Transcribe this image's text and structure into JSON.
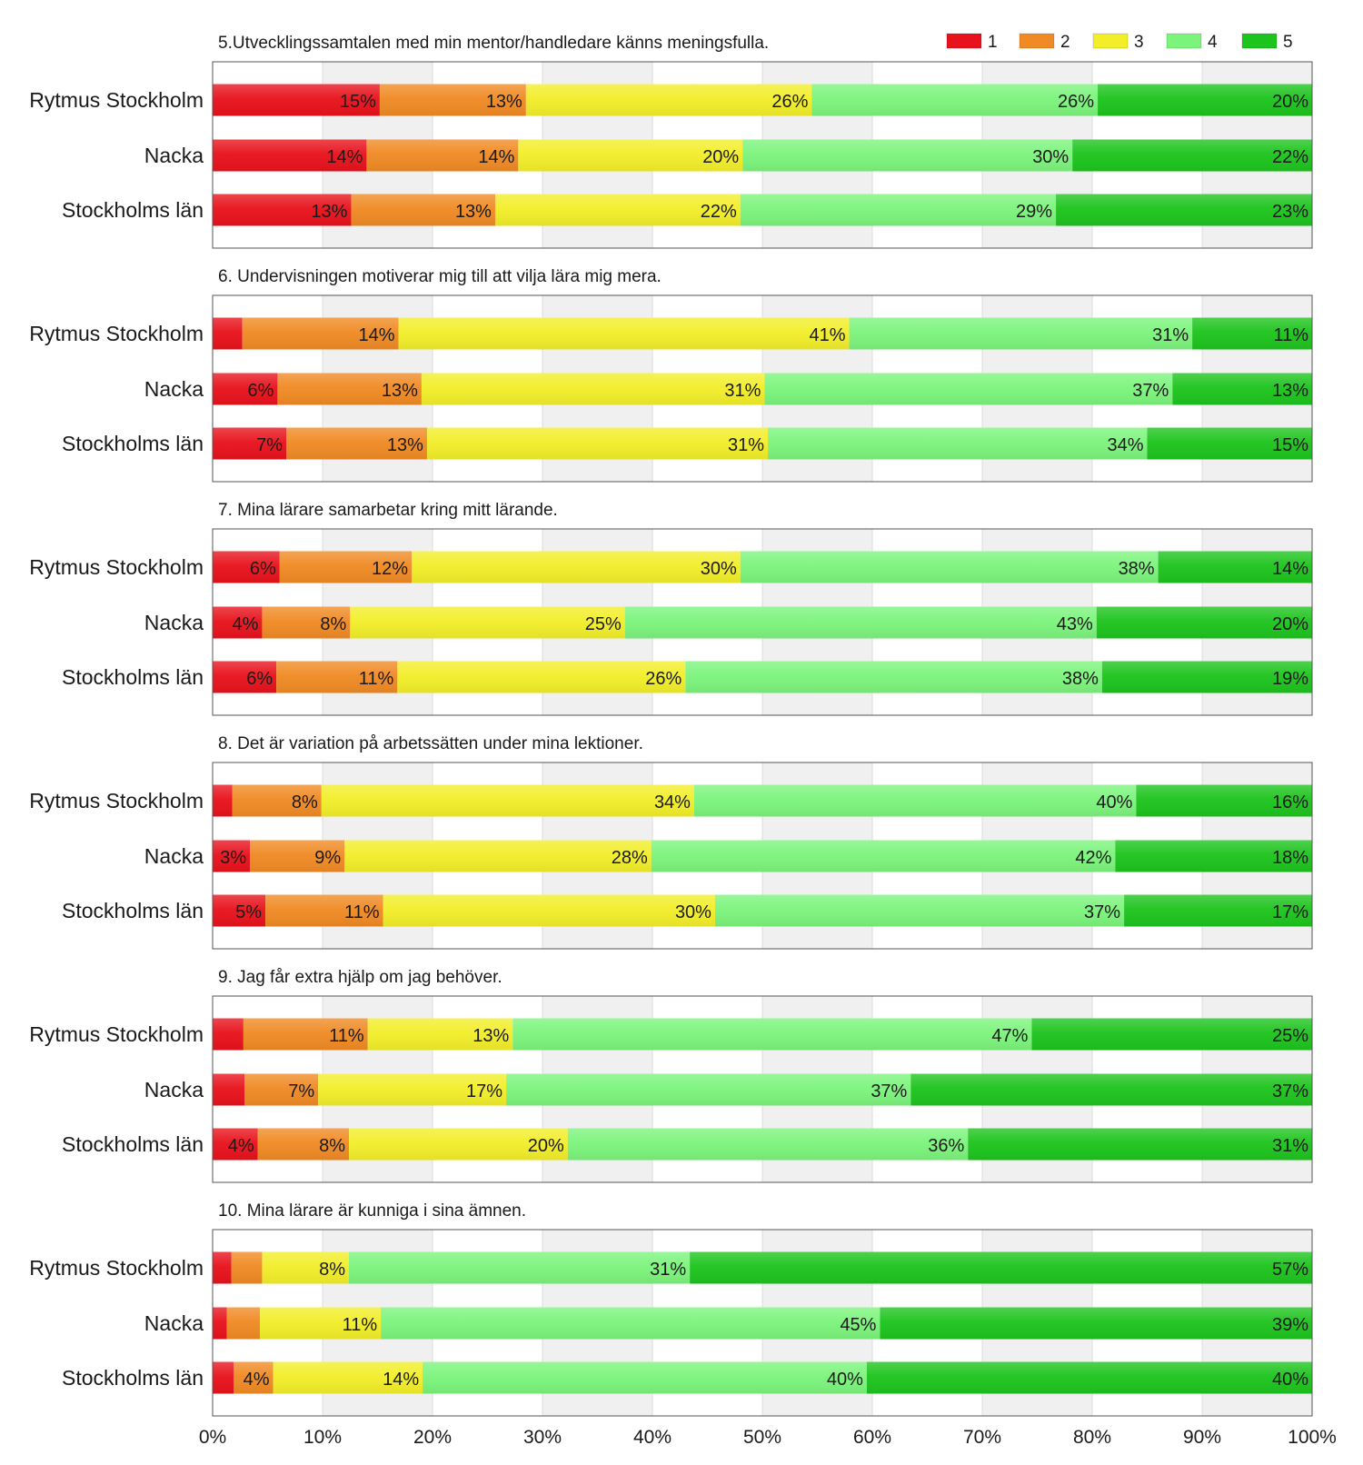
{
  "chart_data": {
    "type": "bar",
    "orientation": "horizontal",
    "stacked": "percent",
    "categories": [
      "Rytmus Stockholm",
      "Nacka",
      "Stockholms län"
    ],
    "legend": {
      "placement": "top-right",
      "entries": [
        "1",
        "2",
        "3",
        "4",
        "5"
      ]
    },
    "colors": [
      "#e8121c",
      "#f08a24",
      "#f2ee2a",
      "#7cf47c",
      "#1dc41d"
    ],
    "x_axis": {
      "range": [
        0,
        100
      ],
      "ticks": [
        "0%",
        "10%",
        "20%",
        "30%",
        "40%",
        "50%",
        "60%",
        "70%",
        "80%",
        "90%",
        "100%"
      ],
      "grid": true
    },
    "panels": [
      {
        "title": "5.Utvecklingssamtalen med min mentor/handledare känns meningsfulla.",
        "values": [
          [
            15.2,
            13.3,
            26.0,
            26.0,
            19.5
          ],
          [
            14.0,
            13.8,
            20.4,
            30.0,
            21.8
          ],
          [
            12.6,
            13.1,
            22.3,
            28.7,
            23.3
          ]
        ],
        "labels": [
          [
            "15%",
            "13%",
            "26%",
            "26%",
            "20%"
          ],
          [
            "14%",
            "14%",
            "20%",
            "30%",
            "22%"
          ],
          [
            "13%",
            "13%",
            "22%",
            "29%",
            "23%"
          ]
        ]
      },
      {
        "title": "6. Undervisningen motiverar mig till att vilja lära mig mera.",
        "values": [
          [
            2.7,
            14.2,
            41.0,
            31.2,
            10.9
          ],
          [
            5.9,
            13.1,
            31.2,
            37.1,
            12.7
          ],
          [
            6.7,
            12.8,
            31.0,
            34.5,
            15.0
          ]
        ],
        "labels": [
          [
            "",
            "14%",
            "41%",
            "31%",
            "11%"
          ],
          [
            "6%",
            "13%",
            "31%",
            "37%",
            "13%"
          ],
          [
            "7%",
            "13%",
            "31%",
            "34%",
            "15%"
          ]
        ]
      },
      {
        "title": "7. Mina lärare samarbetar kring mitt lärande.",
        "values": [
          [
            6.1,
            12.0,
            29.9,
            38.0,
            14.0
          ],
          [
            4.5,
            8.0,
            25.0,
            42.9,
            19.6
          ],
          [
            5.8,
            11.0,
            26.2,
            37.9,
            19.1
          ]
        ],
        "labels": [
          [
            "6%",
            "12%",
            "30%",
            "38%",
            "14%"
          ],
          [
            "4%",
            "8%",
            "25%",
            "43%",
            "20%"
          ],
          [
            "6%",
            "11%",
            "26%",
            "38%",
            "19%"
          ]
        ]
      },
      {
        "title": "8. Det är variation på arbetssätten under mina lektioner.",
        "values": [
          [
            1.8,
            8.1,
            33.9,
            40.2,
            16.0
          ],
          [
            3.4,
            8.6,
            27.9,
            42.2,
            17.9
          ],
          [
            4.8,
            10.7,
            30.2,
            37.2,
            17.1
          ]
        ],
        "labels": [
          [
            "",
            "8%",
            "34%",
            "40%",
            "16%"
          ],
          [
            "3%",
            "9%",
            "28%",
            "42%",
            "18%"
          ],
          [
            "5%",
            "11%",
            "30%",
            "37%",
            "17%"
          ]
        ]
      },
      {
        "title": "9. Jag får extra hjälp om jag behöver.",
        "values": [
          [
            2.8,
            11.3,
            13.2,
            47.2,
            25.5
          ],
          [
            2.9,
            6.7,
            17.1,
            36.8,
            36.5
          ],
          [
            4.1,
            8.3,
            19.9,
            36.4,
            31.3
          ]
        ],
        "labels": [
          [
            "",
            "11%",
            "13%",
            "47%",
            "25%"
          ],
          [
            "",
            "7%",
            "17%",
            "37%",
            "37%"
          ],
          [
            "4%",
            "8%",
            "20%",
            "36%",
            "31%"
          ]
        ]
      },
      {
        "title": "10. Mina lärare är kunniga i sina ämnen.",
        "values": [
          [
            1.7,
            2.8,
            7.9,
            31.0,
            56.6
          ],
          [
            1.3,
            3.0,
            11.0,
            45.4,
            39.3
          ],
          [
            1.9,
            3.6,
            13.6,
            40.4,
            40.5
          ]
        ],
        "labels": [
          [
            "",
            "",
            "8%",
            "31%",
            "57%"
          ],
          [
            "",
            "",
            "11%",
            "45%",
            "39%"
          ],
          [
            "",
            "4%",
            "14%",
            "40%",
            "40%"
          ]
        ]
      }
    ]
  }
}
